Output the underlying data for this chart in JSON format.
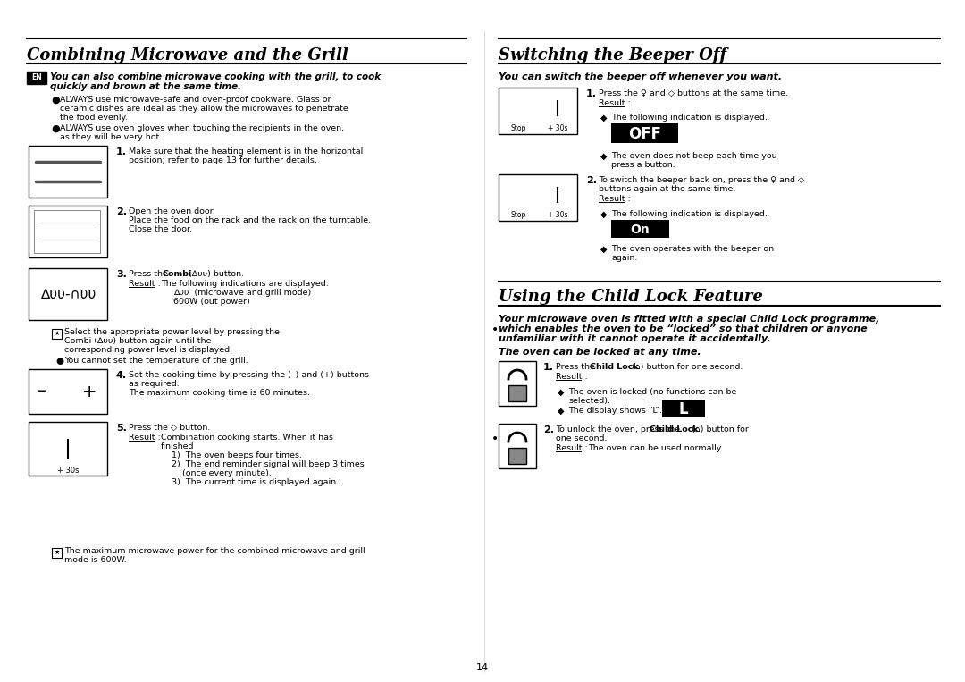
{
  "bg_color": "#ffffff",
  "page_num": "14",
  "left_title": "Combining Microwave and the Grill",
  "right_title1": "Switching the Beeper Off",
  "right_title2": "Using the Child Lock Feature",
  "beeper_intro": "You can switch the beeper off whenever you want.",
  "left_intro1": "You can also combine microwave cooking with the grill, to cook",
  "left_intro2": "quickly and brown at the same time.",
  "child_intro1": "Your microwave oven is fitted with a special Child Lock programme,",
  "child_intro2": "which enables the oven to be “locked” so that children or anyone",
  "child_intro3": "unfamiliar with it cannot operate it accidentally.",
  "child_subtitle": "The oven can be locked at any time.",
  "off_display": "OFF",
  "on_display": "On",
  "l_display": "L"
}
